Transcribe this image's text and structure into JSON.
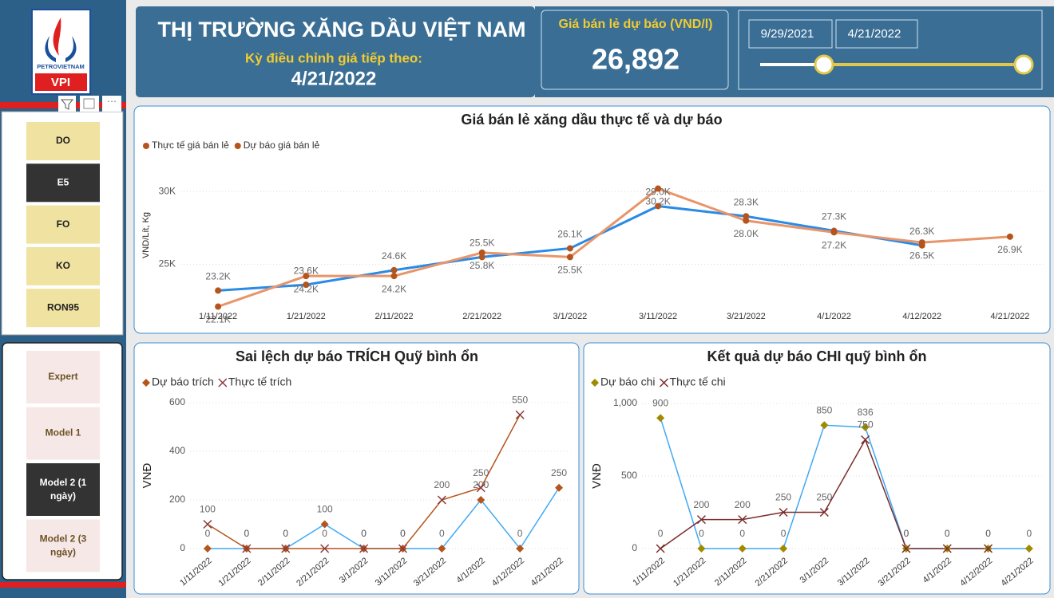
{
  "logo": {
    "brand": "PETROVIETNAM",
    "abbr": "VPI"
  },
  "header": {
    "title": "THỊ TRƯỜNG XĂNG DẦU VIỆT NAM",
    "subtitle": "Kỳ điều chỉnh giá tiếp theo:",
    "date": "4/21/2022"
  },
  "kpi": {
    "label": "Giá bán lẻ dự báo (VND/l)",
    "value": "26,892"
  },
  "slicer": {
    "start": "9/29/2021",
    "end": "4/21/2022"
  },
  "fuels": [
    {
      "label": "DO",
      "selected": false
    },
    {
      "label": "E5",
      "selected": true
    },
    {
      "label": "FO",
      "selected": false
    },
    {
      "label": "KO",
      "selected": false
    },
    {
      "label": "RON95",
      "selected": false
    }
  ],
  "models": [
    {
      "label": "Expert",
      "selected": false
    },
    {
      "label": "Model 1",
      "selected": false
    },
    {
      "label": "Model 2 (1 ngày)",
      "selected": true
    },
    {
      "label": "Model 2 (3 ngày)",
      "selected": false
    }
  ],
  "chart_data": [
    {
      "type": "line",
      "title": "Giá bán lẻ xăng dầu thực tế và dự báo",
      "ylabel": "VND/Lít, Kg",
      "categories": [
        "1/11/2022",
        "1/21/2022",
        "2/11/2022",
        "2/21/2022",
        "3/1/2022",
        "3/11/2022",
        "3/21/2022",
        "4/1/2022",
        "4/12/2022",
        "4/21/2022"
      ],
      "series": [
        {
          "name": "Thực tế giá bán lẻ",
          "marker": "circle",
          "color": "#b5541c",
          "line_color": "#2a8ae6",
          "values": [
            23200,
            23600,
            24600,
            25500,
            26100,
            29000,
            28300,
            27300,
            26300,
            null
          ],
          "value_labels": [
            "23.2K",
            "23.6K",
            "24.6K",
            "25.5K",
            "26.1K",
            "29.0K",
            "28.3K",
            "27.3K",
            "26.3K",
            null
          ]
        },
        {
          "name": "Dự báo giá bán lẻ",
          "marker": "circle",
          "color": "#b5541c",
          "line_color": "#e8956a",
          "values": [
            22100,
            24200,
            24200,
            25800,
            25500,
            30200,
            28000,
            27200,
            26500,
            26900
          ],
          "value_labels": [
            "22.1K",
            "24.2K",
            "24.2K",
            "25.8K",
            "25.5K",
            "30.2K",
            "28.0K",
            "27.2K",
            "26.5K",
            "26.9K"
          ]
        }
      ],
      "ylim": [
        21800,
        32200
      ],
      "yticks": [
        {
          "value": 25000,
          "label": "25K"
        },
        {
          "value": 30000,
          "label": "30K"
        }
      ],
      "grid": true
    },
    {
      "type": "line",
      "title": "Sai lệch dự báo TRÍCH Quỹ bình ổn",
      "ylabel": "VNĐ",
      "categories": [
        "1/11/2022",
        "1/21/2022",
        "2/11/2022",
        "2/21/2022",
        "3/1/2022",
        "3/11/2022",
        "3/21/2022",
        "4/1/2022",
        "4/12/2022",
        "4/21/2022"
      ],
      "series": [
        {
          "name": "Dự báo trích",
          "marker": "diamond",
          "color": "#b5541c",
          "line_color": "#3fa9f5",
          "values": [
            0,
            0,
            0,
            100,
            0,
            0,
            0,
            200,
            0,
            250
          ]
        },
        {
          "name": "Thực tế trích",
          "marker": "x",
          "color": "#8b3a3a",
          "line_color": "#b5541c",
          "values": [
            100,
            0,
            0,
            0,
            0,
            0,
            200,
            250,
            550,
            null
          ]
        }
      ],
      "ylim": [
        0,
        600
      ],
      "yticks": [
        0,
        200,
        400,
        600
      ],
      "grid": true
    },
    {
      "type": "line",
      "title": "Kết quả dự báo CHI quỹ bình ổn",
      "ylabel": "VNĐ",
      "categories": [
        "1/11/2022",
        "1/21/2022",
        "2/11/2022",
        "2/21/2022",
        "3/1/2022",
        "3/11/2022",
        "3/21/2022",
        "4/1/2022",
        "4/12/2022",
        "4/21/2022"
      ],
      "series": [
        {
          "name": "Dự báo chi",
          "marker": "diamond",
          "color": "#a08a00",
          "line_color": "#3fa9f5",
          "values": [
            900,
            0,
            0,
            0,
            850,
            836,
            0,
            0,
            0,
            0
          ]
        },
        {
          "name": "Thực tế chi",
          "marker": "x",
          "color": "#7b2c2c",
          "line_color": "#7b2c2c",
          "values": [
            0,
            200,
            200,
            250,
            250,
            750,
            0,
            0,
            0,
            null
          ]
        }
      ],
      "ylim": [
        0,
        1000
      ],
      "yticks": [
        0,
        500,
        {
          "value": 1000,
          "label": "1,000"
        }
      ],
      "grid": true
    }
  ]
}
